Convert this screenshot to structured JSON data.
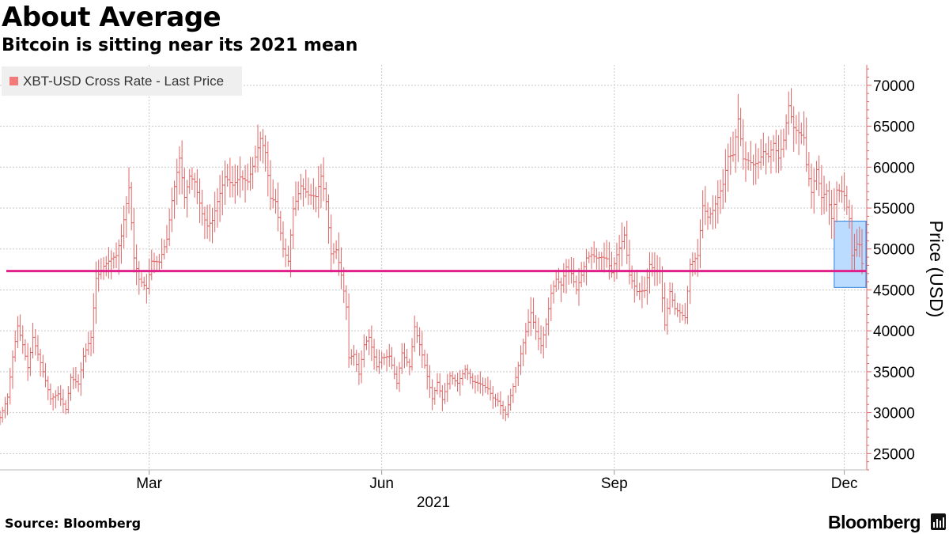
{
  "header": {
    "title": "About Average",
    "subtitle": "Bitcoin is sitting near its 2021 mean"
  },
  "legend": {
    "label": "XBT-USD Cross Rate - Last Price",
    "color": "#f27a7a"
  },
  "footer": {
    "source": "Source: Bloomberg",
    "brand": "Bloomberg"
  },
  "colors": {
    "series": "#e06666",
    "mean_line": "#e0208a",
    "highlight_fill": "#bcdcff",
    "highlight_stroke": "#2a7fe0",
    "grid": "#c8c8c8",
    "axis": "#e06666"
  },
  "chart_data": {
    "type": "line",
    "title": "About Average",
    "subtitle": "Bitcoin is sitting near its 2021 mean",
    "xlabel": "2021",
    "ylabel": "Price (USD)",
    "x_range": [
      "2021-01-01",
      "2021-12-08"
    ],
    "ylim": [
      23000,
      72500
    ],
    "yticks": [
      25000,
      30000,
      35000,
      40000,
      45000,
      50000,
      55000,
      60000,
      65000,
      70000
    ],
    "ytick_labels": [
      "25000",
      "30000",
      "35000",
      "40000",
      "45000",
      "50000",
      "55000",
      "60000",
      "65000",
      "70000"
    ],
    "xticks": [
      {
        "label": "Mar",
        "date": "2021-03-01"
      },
      {
        "label": "Jun",
        "date": "2021-06-01"
      },
      {
        "label": "Sep",
        "date": "2021-09-01"
      },
      {
        "label": "Dec",
        "date": "2021-12-01"
      }
    ],
    "grid": true,
    "legend_position": "top-left",
    "series": [
      {
        "name": "XBT-USD Cross Rate - Last Price",
        "points": [
          [
            "2021-01-01",
            29400
          ],
          [
            "2021-01-04",
            31900
          ],
          [
            "2021-01-06",
            36800
          ],
          [
            "2021-01-08",
            40600
          ],
          [
            "2021-01-10",
            38300
          ],
          [
            "2021-01-12",
            35500
          ],
          [
            "2021-01-14",
            39200
          ],
          [
            "2021-01-17",
            36100
          ],
          [
            "2021-01-21",
            31700
          ],
          [
            "2021-01-24",
            32300
          ],
          [
            "2021-01-27",
            30400
          ],
          [
            "2021-01-29",
            34300
          ],
          [
            "2021-02-01",
            33500
          ],
          [
            "2021-02-03",
            36900
          ],
          [
            "2021-02-06",
            39200
          ],
          [
            "2021-02-08",
            46400
          ],
          [
            "2021-02-11",
            47900
          ],
          [
            "2021-02-14",
            48800
          ],
          [
            "2021-02-16",
            49200
          ],
          [
            "2021-02-18",
            51600
          ],
          [
            "2021-02-21",
            57500
          ],
          [
            "2021-02-23",
            48900
          ],
          [
            "2021-02-25",
            46300
          ],
          [
            "2021-02-28",
            45200
          ],
          [
            "2021-03-02",
            48500
          ],
          [
            "2021-03-05",
            48400
          ],
          [
            "2021-03-08",
            51200
          ],
          [
            "2021-03-10",
            55900
          ],
          [
            "2021-03-13",
            61100
          ],
          [
            "2021-03-15",
            56300
          ],
          [
            "2021-03-17",
            58900
          ],
          [
            "2021-03-19",
            58200
          ],
          [
            "2021-03-22",
            54300
          ],
          [
            "2021-03-24",
            52800
          ],
          [
            "2021-03-26",
            53500
          ],
          [
            "2021-03-28",
            55800
          ],
          [
            "2021-03-31",
            58800
          ],
          [
            "2021-04-03",
            57800
          ],
          [
            "2021-04-06",
            58800
          ],
          [
            "2021-04-09",
            58200
          ],
          [
            "2021-04-11",
            60100
          ],
          [
            "2021-04-14",
            63500
          ],
          [
            "2021-04-16",
            61800
          ],
          [
            "2021-04-18",
            56200
          ],
          [
            "2021-04-20",
            55800
          ],
          [
            "2021-04-23",
            50000
          ],
          [
            "2021-04-25",
            48500
          ],
          [
            "2021-04-27",
            54900
          ],
          [
            "2021-04-30",
            57700
          ],
          [
            "2021-05-03",
            56600
          ],
          [
            "2021-05-06",
            56400
          ],
          [
            "2021-05-08",
            58900
          ],
          [
            "2021-05-10",
            55800
          ],
          [
            "2021-05-12",
            49400
          ],
          [
            "2021-05-14",
            49900
          ],
          [
            "2021-05-16",
            46800
          ],
          [
            "2021-05-18",
            42900
          ],
          [
            "2021-05-19",
            36700
          ],
          [
            "2021-05-21",
            37100
          ],
          [
            "2021-05-23",
            34700
          ],
          [
            "2021-05-25",
            38300
          ],
          [
            "2021-05-27",
            39200
          ],
          [
            "2021-05-30",
            35600
          ],
          [
            "2021-06-01",
            36700
          ],
          [
            "2021-06-04",
            36900
          ],
          [
            "2021-06-07",
            33600
          ],
          [
            "2021-06-09",
            37300
          ],
          [
            "2021-06-12",
            35600
          ],
          [
            "2021-06-14",
            40500
          ],
          [
            "2021-06-16",
            38300
          ],
          [
            "2021-06-18",
            35800
          ],
          [
            "2021-06-21",
            31700
          ],
          [
            "2021-06-23",
            33700
          ],
          [
            "2021-06-25",
            31600
          ],
          [
            "2021-06-28",
            34500
          ],
          [
            "2021-07-01",
            33600
          ],
          [
            "2021-07-04",
            35300
          ],
          [
            "2021-07-07",
            33800
          ],
          [
            "2021-07-10",
            33500
          ],
          [
            "2021-07-13",
            32900
          ],
          [
            "2021-07-15",
            31800
          ],
          [
            "2021-07-17",
            31400
          ],
          [
            "2021-07-20",
            29800
          ],
          [
            "2021-07-22",
            32100
          ],
          [
            "2021-07-24",
            34300
          ],
          [
            "2021-07-26",
            37200
          ],
          [
            "2021-07-28",
            39900
          ],
          [
            "2021-07-30",
            42200
          ],
          [
            "2021-08-01",
            39900
          ],
          [
            "2021-08-03",
            38200
          ],
          [
            "2021-08-05",
            40800
          ],
          [
            "2021-08-07",
            44600
          ],
          [
            "2021-08-09",
            46300
          ],
          [
            "2021-08-11",
            45600
          ],
          [
            "2021-08-13",
            47800
          ],
          [
            "2021-08-15",
            47000
          ],
          [
            "2021-08-17",
            45000
          ],
          [
            "2021-08-19",
            46800
          ],
          [
            "2021-08-21",
            48900
          ],
          [
            "2021-08-23",
            49300
          ],
          [
            "2021-08-25",
            48900
          ],
          [
            "2021-08-27",
            49000
          ],
          [
            "2021-08-29",
            48800
          ],
          [
            "2021-08-31",
            47100
          ],
          [
            "2021-09-02",
            49300
          ],
          [
            "2021-09-05",
            51700
          ],
          [
            "2021-09-07",
            46800
          ],
          [
            "2021-09-08",
            46100
          ],
          [
            "2021-09-10",
            44800
          ],
          [
            "2021-09-13",
            44900
          ],
          [
            "2021-09-15",
            48100
          ],
          [
            "2021-09-17",
            47300
          ],
          [
            "2021-09-19",
            47300
          ],
          [
            "2021-09-21",
            40700
          ],
          [
            "2021-09-23",
            44800
          ],
          [
            "2021-09-25",
            42700
          ],
          [
            "2021-09-27",
            42200
          ],
          [
            "2021-09-29",
            41600
          ],
          [
            "2021-10-01",
            48100
          ],
          [
            "2021-10-04",
            49200
          ],
          [
            "2021-10-06",
            55300
          ],
          [
            "2021-10-08",
            53900
          ],
          [
            "2021-10-10",
            54700
          ],
          [
            "2021-10-12",
            56300
          ],
          [
            "2021-10-14",
            57900
          ],
          [
            "2021-10-16",
            61300
          ],
          [
            "2021-10-18",
            61500
          ],
          [
            "2021-10-20",
            65900
          ],
          [
            "2021-10-22",
            61000
          ],
          [
            "2021-10-24",
            60800
          ],
          [
            "2021-10-26",
            60300
          ],
          [
            "2021-10-28",
            60600
          ],
          [
            "2021-10-30",
            61900
          ],
          [
            "2021-11-01",
            61300
          ],
          [
            "2021-11-03",
            62900
          ],
          [
            "2021-11-05",
            61100
          ],
          [
            "2021-11-07",
            63300
          ],
          [
            "2021-11-09",
            67500
          ],
          [
            "2021-11-11",
            64800
          ],
          [
            "2021-11-13",
            64200
          ],
          [
            "2021-11-15",
            63600
          ],
          [
            "2021-11-16",
            60300
          ],
          [
            "2021-11-18",
            56900
          ],
          [
            "2021-11-20",
            59700
          ],
          [
            "2021-11-22",
            56300
          ],
          [
            "2021-11-24",
            57100
          ],
          [
            "2021-11-26",
            53700
          ],
          [
            "2021-11-28",
            57200
          ],
          [
            "2021-11-30",
            57000
          ],
          [
            "2021-12-01",
            56500
          ],
          [
            "2021-12-03",
            53700
          ],
          [
            "2021-12-04",
            49200
          ],
          [
            "2021-12-06",
            50600
          ],
          [
            "2021-12-07",
            50500
          ],
          [
            "2021-12-08",
            48200
          ]
        ]
      }
    ],
    "reference_line": {
      "label": "2021 mean",
      "y": 47300
    },
    "highlight_box": {
      "x_start": "2021-11-27",
      "x_end": "2021-12-19",
      "y_min": 45300,
      "y_max": 53400
    }
  }
}
